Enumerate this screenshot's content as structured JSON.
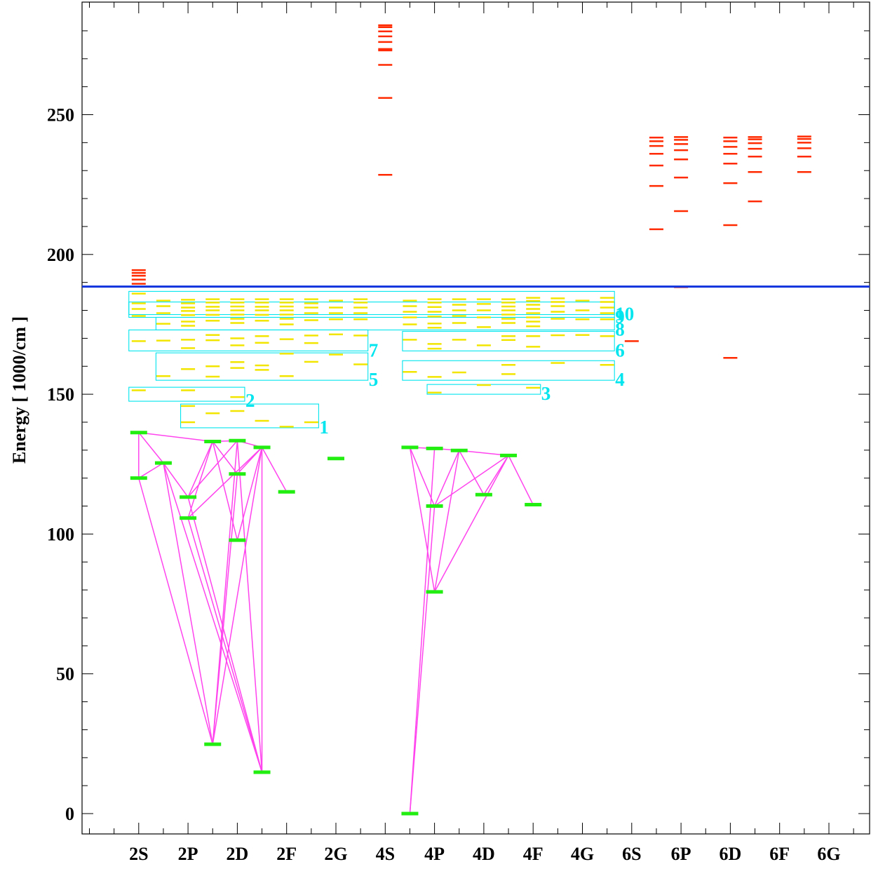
{
  "chart_data": {
    "type": "scatter",
    "title": "",
    "ylabel": "Energy  [ 1000/cm ]",
    "xlabel": "",
    "ylim": [
      -7,
      289
    ],
    "y_ticks": [
      0,
      50,
      100,
      150,
      200,
      250
    ],
    "y_minor_step": 10,
    "categories": [
      "2S",
      "2P",
      "2D",
      "2F",
      "2G",
      "4S",
      "4P",
      "4D",
      "4F",
      "4G",
      "6S",
      "6P",
      "6D",
      "6F",
      "6G"
    ],
    "ionization_limit": 188.5,
    "colors": {
      "computed": "#ff2a00",
      "yellow_levels": "#f2e600",
      "observed": "#22ee11",
      "transitions": "#ff44ee",
      "boxes": "#00e5ee",
      "limit_line": "#1133dd",
      "frame": "#000000"
    },
    "observed_levels": [
      {
        "x": 1,
        "y": 136.3
      },
      {
        "x": 1,
        "y": 120.0
      },
      {
        "x": 1.5,
        "y": 125.4
      },
      {
        "x": 2,
        "y": 113.2
      },
      {
        "x": 2,
        "y": 105.7
      },
      {
        "x": 2.5,
        "y": 133.1
      },
      {
        "x": 2.5,
        "y": 24.8
      },
      {
        "x": 3,
        "y": 133.4
      },
      {
        "x": 3,
        "y": 121.5
      },
      {
        "x": 3,
        "y": 97.8
      },
      {
        "x": 3.5,
        "y": 131.0
      },
      {
        "x": 3.5,
        "y": 14.8
      },
      {
        "x": 4,
        "y": 115.1
      },
      {
        "x": 5,
        "y": 127.0
      },
      {
        "x": 6.5,
        "y": 131.0
      },
      {
        "x": 6.5,
        "y": 0.0
      },
      {
        "x": 7,
        "y": 130.6
      },
      {
        "x": 7,
        "y": 110.0
      },
      {
        "x": 7,
        "y": 79.3
      },
      {
        "x": 7.5,
        "y": 129.9
      },
      {
        "x": 8,
        "y": 114.1
      },
      {
        "x": 8.5,
        "y": 128.1
      },
      {
        "x": 9,
        "y": 110.5
      }
    ],
    "transitions": [
      [
        [
          1,
          136.3
        ],
        [
          1,
          120.0
        ]
      ],
      [
        [
          1,
          136.3
        ],
        [
          1.5,
          125.4
        ]
      ],
      [
        [
          1,
          136.3
        ],
        [
          2.5,
          133.1
        ]
      ],
      [
        [
          1,
          120.0
        ],
        [
          1.5,
          125.4
        ]
      ],
      [
        [
          1,
          120.0
        ],
        [
          2.5,
          24.8
        ]
      ],
      [
        [
          1.5,
          125.4
        ],
        [
          2,
          113.2
        ]
      ],
      [
        [
          1.5,
          125.4
        ],
        [
          2.5,
          24.8
        ]
      ],
      [
        [
          1.5,
          125.4
        ],
        [
          3.5,
          14.8
        ]
      ],
      [
        [
          2,
          113.2
        ],
        [
          2.5,
          133.1
        ]
      ],
      [
        [
          2,
          113.2
        ],
        [
          3,
          133.4
        ]
      ],
      [
        [
          2,
          113.2
        ],
        [
          3.5,
          14.8
        ]
      ],
      [
        [
          2,
          105.7
        ],
        [
          2.5,
          133.1
        ]
      ],
      [
        [
          2,
          105.7
        ],
        [
          3.5,
          131.0
        ]
      ],
      [
        [
          2,
          105.7
        ],
        [
          3.5,
          14.8
        ]
      ],
      [
        [
          2.5,
          133.1
        ],
        [
          3,
          133.4
        ]
      ],
      [
        [
          2.5,
          133.1
        ],
        [
          3,
          121.5
        ]
      ],
      [
        [
          2.5,
          133.1
        ],
        [
          3,
          97.8
        ]
      ],
      [
        [
          2.5,
          24.8
        ],
        [
          3,
          133.4
        ]
      ],
      [
        [
          2.5,
          24.8
        ],
        [
          3,
          121.5
        ]
      ],
      [
        [
          2.5,
          24.8
        ],
        [
          3.5,
          131.0
        ]
      ],
      [
        [
          3,
          133.4
        ],
        [
          3.5,
          131.0
        ]
      ],
      [
        [
          3,
          133.4
        ],
        [
          3.5,
          14.8
        ]
      ],
      [
        [
          3,
          121.5
        ],
        [
          3.5,
          131.0
        ]
      ],
      [
        [
          3,
          97.8
        ],
        [
          3.5,
          131.0
        ]
      ],
      [
        [
          3.5,
          131.0
        ],
        [
          3.5,
          14.8
        ]
      ],
      [
        [
          3.5,
          131.0
        ],
        [
          4,
          115.1
        ]
      ],
      [
        [
          6.5,
          131.0
        ],
        [
          7,
          130.6
        ]
      ],
      [
        [
          6.5,
          131.0
        ],
        [
          7,
          110.0
        ]
      ],
      [
        [
          6.5,
          131.0
        ],
        [
          7,
          79.3
        ]
      ],
      [
        [
          6.5,
          0.0
        ],
        [
          7,
          130.6
        ]
      ],
      [
        [
          6.5,
          0.0
        ],
        [
          7,
          110.0
        ]
      ],
      [
        [
          7,
          130.6
        ],
        [
          7.5,
          129.9
        ]
      ],
      [
        [
          7,
          110.0
        ],
        [
          7.5,
          129.9
        ]
      ],
      [
        [
          7,
          79.3
        ],
        [
          7.5,
          129.9
        ]
      ],
      [
        [
          7,
          79.3
        ],
        [
          8.5,
          128.1
        ]
      ],
      [
        [
          7,
          110.0
        ],
        [
          8.5,
          128.1
        ]
      ],
      [
        [
          7.5,
          129.9
        ],
        [
          8,
          114.1
        ]
      ],
      [
        [
          7.5,
          129.9
        ],
        [
          8.5,
          128.1
        ]
      ],
      [
        [
          8,
          114.1
        ],
        [
          8.5,
          128.1
        ]
      ],
      [
        [
          8.5,
          128.1
        ],
        [
          9,
          110.5
        ]
      ]
    ],
    "yellow_levels": [
      {
        "x": 2,
        "y": 145.8
      },
      {
        "x": 2,
        "y": 140.0
      },
      {
        "x": 2.5,
        "y": 143.2
      },
      {
        "x": 3,
        "y": 144.0
      },
      {
        "x": 3,
        "y": 149.0
      },
      {
        "x": 3.5,
        "y": 140.5
      },
      {
        "x": 4,
        "y": 138.4
      },
      {
        "x": 4.5,
        "y": 140.0
      },
      {
        "x": 1,
        "y": 151.4
      },
      {
        "x": 2,
        "y": 151.4
      },
      {
        "x": 7,
        "y": 150.6
      },
      {
        "x": 7,
        "y": 156.2
      },
      {
        "x": 8,
        "y": 153.3
      },
      {
        "x": 9,
        "y": 152.3
      },
      {
        "x": 1.5,
        "y": 156.5
      },
      {
        "x": 2,
        "y": 159.0
      },
      {
        "x": 2.5,
        "y": 156.3
      },
      {
        "x": 2.5,
        "y": 160.0
      },
      {
        "x": 3,
        "y": 159.4
      },
      {
        "x": 3,
        "y": 161.5
      },
      {
        "x": 3.5,
        "y": 158.7
      },
      {
        "x": 3.5,
        "y": 160.3
      },
      {
        "x": 4,
        "y": 156.5
      },
      {
        "x": 4.5,
        "y": 161.6
      },
      {
        "x": 5,
        "y": 164.2
      },
      {
        "x": 5.5,
        "y": 160.7
      },
      {
        "x": 6.5,
        "y": 158.0
      },
      {
        "x": 7.5,
        "y": 157.8
      },
      {
        "x": 8.5,
        "y": 157.2
      },
      {
        "x": 8.5,
        "y": 160.5
      },
      {
        "x": 9.5,
        "y": 161.2
      },
      {
        "x": 10.5,
        "y": 160.5
      },
      {
        "x": 1,
        "y": 169.0
      },
      {
        "x": 1.5,
        "y": 169.2
      },
      {
        "x": 2,
        "y": 166.5
      },
      {
        "x": 2,
        "y": 169.5
      },
      {
        "x": 2.5,
        "y": 169.3
      },
      {
        "x": 2.5,
        "y": 171.2
      },
      {
        "x": 3,
        "y": 167.5
      },
      {
        "x": 3,
        "y": 170.0
      },
      {
        "x": 3.5,
        "y": 168.4
      },
      {
        "x": 3.5,
        "y": 170.8
      },
      {
        "x": 4,
        "y": 164.5
      },
      {
        "x": 4,
        "y": 169.7
      },
      {
        "x": 4.5,
        "y": 168.3
      },
      {
        "x": 4.5,
        "y": 171.0
      },
      {
        "x": 5,
        "y": 171.4
      },
      {
        "x": 5.5,
        "y": 171.0
      },
      {
        "x": 6.5,
        "y": 169.5
      },
      {
        "x": 7,
        "y": 166.3
      },
      {
        "x": 7,
        "y": 168.0
      },
      {
        "x": 7.5,
        "y": 169.5
      },
      {
        "x": 8,
        "y": 167.5
      },
      {
        "x": 8.5,
        "y": 169.4
      },
      {
        "x": 8.5,
        "y": 170.8
      },
      {
        "x": 9,
        "y": 167.0
      },
      {
        "x": 9,
        "y": 170.8
      },
      {
        "x": 9.5,
        "y": 171.1
      },
      {
        "x": 10,
        "y": 171.2
      },
      {
        "x": 10.5,
        "y": 170.8
      },
      {
        "x": 1,
        "y": 178.0
      },
      {
        "x": 1,
        "y": 180.5
      },
      {
        "x": 1,
        "y": 182.5
      },
      {
        "x": 1,
        "y": 186.0
      },
      {
        "x": 1.5,
        "y": 175.2
      },
      {
        "x": 1.5,
        "y": 179.0
      },
      {
        "x": 1.5,
        "y": 181.5
      },
      {
        "x": 1.5,
        "y": 183.5
      },
      {
        "x": 2,
        "y": 174.5
      },
      {
        "x": 2,
        "y": 176.0
      },
      {
        "x": 2,
        "y": 178.3
      },
      {
        "x": 2,
        "y": 179.8
      },
      {
        "x": 2,
        "y": 181.0
      },
      {
        "x": 2,
        "y": 182.5
      },
      {
        "x": 2,
        "y": 183.8
      },
      {
        "x": 2.5,
        "y": 176.3
      },
      {
        "x": 2.5,
        "y": 178.4
      },
      {
        "x": 2.5,
        "y": 180.0
      },
      {
        "x": 2.5,
        "y": 181.3
      },
      {
        "x": 2.5,
        "y": 182.8
      },
      {
        "x": 2.5,
        "y": 184.0
      },
      {
        "x": 3,
        "y": 175.5
      },
      {
        "x": 3,
        "y": 177.0
      },
      {
        "x": 3,
        "y": 178.5
      },
      {
        "x": 3,
        "y": 180.0
      },
      {
        "x": 3,
        "y": 181.4
      },
      {
        "x": 3,
        "y": 182.8
      },
      {
        "x": 3,
        "y": 184.0
      },
      {
        "x": 3.5,
        "y": 176.3
      },
      {
        "x": 3.5,
        "y": 178.4
      },
      {
        "x": 3.5,
        "y": 180.0
      },
      {
        "x": 3.5,
        "y": 181.3
      },
      {
        "x": 3.5,
        "y": 182.8
      },
      {
        "x": 3.5,
        "y": 184.0
      },
      {
        "x": 4,
        "y": 175.0
      },
      {
        "x": 4,
        "y": 177.0
      },
      {
        "x": 4,
        "y": 178.5
      },
      {
        "x": 4,
        "y": 180.0
      },
      {
        "x": 4,
        "y": 181.4
      },
      {
        "x": 4,
        "y": 182.8
      },
      {
        "x": 4,
        "y": 184.0
      },
      {
        "x": 4.5,
        "y": 176.5
      },
      {
        "x": 4.5,
        "y": 179.0
      },
      {
        "x": 4.5,
        "y": 181.0
      },
      {
        "x": 4.5,
        "y": 182.5
      },
      {
        "x": 4.5,
        "y": 184.0
      },
      {
        "x": 5,
        "y": 176.8
      },
      {
        "x": 5,
        "y": 179.0
      },
      {
        "x": 5,
        "y": 181.0
      },
      {
        "x": 5,
        "y": 183.5
      },
      {
        "x": 5.5,
        "y": 176.8
      },
      {
        "x": 5.5,
        "y": 179.0
      },
      {
        "x": 5.5,
        "y": 181.0
      },
      {
        "x": 5.5,
        "y": 182.8
      },
      {
        "x": 5.5,
        "y": 184.0
      },
      {
        "x": 6.5,
        "y": 175.0
      },
      {
        "x": 6.5,
        "y": 177.5
      },
      {
        "x": 6.5,
        "y": 179.5
      },
      {
        "x": 6.5,
        "y": 181.5
      },
      {
        "x": 6.5,
        "y": 183.5
      },
      {
        "x": 7,
        "y": 173.8
      },
      {
        "x": 7,
        "y": 175.3
      },
      {
        "x": 7,
        "y": 177.8
      },
      {
        "x": 7,
        "y": 179.5
      },
      {
        "x": 7,
        "y": 181.2
      },
      {
        "x": 7,
        "y": 182.8
      },
      {
        "x": 7,
        "y": 184.0
      },
      {
        "x": 7.5,
        "y": 175.5
      },
      {
        "x": 7.5,
        "y": 178.0
      },
      {
        "x": 7.5,
        "y": 180.0
      },
      {
        "x": 7.5,
        "y": 182.0
      },
      {
        "x": 7.5,
        "y": 184.0
      },
      {
        "x": 8,
        "y": 174.0
      },
      {
        "x": 8,
        "y": 177.5
      },
      {
        "x": 8,
        "y": 180.0
      },
      {
        "x": 8,
        "y": 182.3
      },
      {
        "x": 8,
        "y": 184.0
      },
      {
        "x": 8.5,
        "y": 175.5
      },
      {
        "x": 8.5,
        "y": 177.0
      },
      {
        "x": 8.5,
        "y": 178.5
      },
      {
        "x": 8.5,
        "y": 180.0
      },
      {
        "x": 8.5,
        "y": 181.4
      },
      {
        "x": 8.5,
        "y": 182.8
      },
      {
        "x": 8.5,
        "y": 184.0
      },
      {
        "x": 9,
        "y": 174.3
      },
      {
        "x": 9,
        "y": 176.0
      },
      {
        "x": 9,
        "y": 177.5
      },
      {
        "x": 9,
        "y": 179.0
      },
      {
        "x": 9,
        "y": 180.5
      },
      {
        "x": 9,
        "y": 182.0
      },
      {
        "x": 9,
        "y": 183.4
      },
      {
        "x": 9,
        "y": 184.5
      },
      {
        "x": 9.5,
        "y": 177.0
      },
      {
        "x": 9.5,
        "y": 179.5
      },
      {
        "x": 9.5,
        "y": 181.5
      },
      {
        "x": 9.5,
        "y": 183.0
      },
      {
        "x": 9.5,
        "y": 184.3
      },
      {
        "x": 10,
        "y": 176.8
      },
      {
        "x": 10,
        "y": 180.0
      },
      {
        "x": 10,
        "y": 183.5
      },
      {
        "x": 10.5,
        "y": 176.8
      },
      {
        "x": 10.5,
        "y": 179.0
      },
      {
        "x": 10.5,
        "y": 181.0
      },
      {
        "x": 10.5,
        "y": 183.0
      },
      {
        "x": 10.5,
        "y": 184.5
      }
    ],
    "red_levels": [
      {
        "x": 1,
        "y": 189.5
      },
      {
        "x": 1,
        "y": 191.0
      },
      {
        "x": 1,
        "y": 192.4
      },
      {
        "x": 1,
        "y": 193.4
      },
      {
        "x": 1,
        "y": 194.4
      },
      {
        "x": 6,
        "y": 228.5
      },
      {
        "x": 6,
        "y": 256.0
      },
      {
        "x": 6,
        "y": 267.8
      },
      {
        "x": 6,
        "y": 273.0
      },
      {
        "x": 6,
        "y": 273.5
      },
      {
        "x": 6,
        "y": 276.0
      },
      {
        "x": 6,
        "y": 278.0
      },
      {
        "x": 6,
        "y": 279.8
      },
      {
        "x": 6,
        "y": 281.3
      },
      {
        "x": 6,
        "y": 282.0
      },
      {
        "x": 11.5,
        "y": 209.0
      },
      {
        "x": 11.5,
        "y": 224.5
      },
      {
        "x": 11.5,
        "y": 231.8
      },
      {
        "x": 11.5,
        "y": 236.0
      },
      {
        "x": 11.5,
        "y": 238.8
      },
      {
        "x": 11.5,
        "y": 240.5
      },
      {
        "x": 11.5,
        "y": 241.8
      },
      {
        "x": 12,
        "y": 188.3
      },
      {
        "x": 12,
        "y": 215.5
      },
      {
        "x": 12,
        "y": 227.5
      },
      {
        "x": 12,
        "y": 234.0
      },
      {
        "x": 12,
        "y": 237.3
      },
      {
        "x": 12,
        "y": 239.5
      },
      {
        "x": 12,
        "y": 241.0
      },
      {
        "x": 12,
        "y": 242.0
      },
      {
        "x": 11,
        "y": 169.0
      },
      {
        "x": 13,
        "y": 163.0
      },
      {
        "x": 13,
        "y": 210.5
      },
      {
        "x": 13,
        "y": 225.5
      },
      {
        "x": 13,
        "y": 232.5
      },
      {
        "x": 13,
        "y": 236.0
      },
      {
        "x": 13,
        "y": 238.5
      },
      {
        "x": 13,
        "y": 240.5
      },
      {
        "x": 13,
        "y": 241.8
      },
      {
        "x": 13.5,
        "y": 219.0
      },
      {
        "x": 13.5,
        "y": 229.5
      },
      {
        "x": 13.5,
        "y": 235.0
      },
      {
        "x": 13.5,
        "y": 237.8
      },
      {
        "x": 13.5,
        "y": 239.8
      },
      {
        "x": 13.5,
        "y": 241.2
      },
      {
        "x": 13.5,
        "y": 242.0
      },
      {
        "x": 14.5,
        "y": 229.5
      },
      {
        "x": 14.5,
        "y": 235.0
      },
      {
        "x": 14.5,
        "y": 238.0
      },
      {
        "x": 14.5,
        "y": 240.0
      },
      {
        "x": 14.5,
        "y": 241.3
      },
      {
        "x": 14.5,
        "y": 242.2
      }
    ],
    "boxes": [
      {
        "label": "1",
        "x1": 1.85,
        "x2": 4.65,
        "y1": 138.0,
        "y2": 146.5
      },
      {
        "label": "2",
        "x1": 0.8,
        "x2": 3.15,
        "y1": 147.5,
        "y2": 152.5
      },
      {
        "label": "3",
        "x1": 6.85,
        "x2": 9.15,
        "y1": 150.0,
        "y2": 153.5
      },
      {
        "label": "4",
        "x1": 6.35,
        "x2": 10.65,
        "y1": 155.0,
        "y2": 162.0
      },
      {
        "label": "5",
        "x1": 1.35,
        "x2": 5.65,
        "y1": 155.0,
        "y2": 164.8
      },
      {
        "label": "6",
        "x1": 6.35,
        "x2": 10.65,
        "y1": 165.5,
        "y2": 172.5
      },
      {
        "label": "7",
        "x1": 0.8,
        "x2": 5.65,
        "y1": 165.5,
        "y2": 173.0
      },
      {
        "label": "8",
        "x1": 1.35,
        "x2": 10.65,
        "y1": 173.0,
        "y2": 177.5
      },
      {
        "label": "9",
        "x1": 0.8,
        "x2": 10.65,
        "y1": 177.5,
        "y2": 183.0
      },
      {
        "label": "10",
        "x1": 0.8,
        "x2": 10.65,
        "y1": 178.5,
        "y2": 186.8
      }
    ]
  }
}
